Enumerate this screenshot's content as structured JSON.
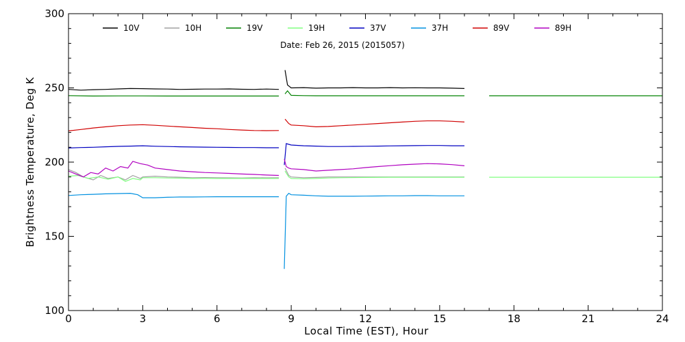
{
  "chart_data": {
    "type": "line",
    "title": "",
    "subtitle": "Date: Feb 26, 2015 (2015057)",
    "xlabel": "Local Time (EST), Hour",
    "ylabel": "Brightness Temperature, Deg K",
    "xlim": [
      0,
      24
    ],
    "ylim": [
      100,
      300
    ],
    "xticks": [
      0,
      3,
      6,
      9,
      12,
      15,
      18,
      21,
      24
    ],
    "yticks": [
      100,
      150,
      200,
      250,
      300
    ],
    "grid": false,
    "legend_position": "top",
    "series": [
      {
        "name": "10V",
        "color": "#000000",
        "points": [
          [
            0,
            249
          ],
          [
            0.5,
            248.5
          ],
          [
            1,
            248.8
          ],
          [
            1.5,
            249
          ],
          [
            2,
            249.3
          ],
          [
            2.5,
            249.6
          ],
          [
            3,
            249.5
          ],
          [
            3.5,
            249.3
          ],
          [
            4,
            249.2
          ],
          [
            4.5,
            249
          ],
          [
            5,
            249.1
          ],
          [
            5.5,
            249.2
          ],
          [
            6,
            249.2
          ],
          [
            6.5,
            249.3
          ],
          [
            7,
            249.1
          ],
          [
            7.5,
            249
          ],
          [
            8,
            249.2
          ],
          [
            8.5,
            249
          ],
          [
            null,
            null
          ],
          [
            8.75,
            262
          ],
          [
            8.85,
            252
          ],
          [
            9,
            250
          ],
          [
            9.5,
            250.2
          ],
          [
            10,
            249.8
          ],
          [
            10.5,
            250
          ],
          [
            11,
            250
          ],
          [
            11.5,
            250.2
          ],
          [
            12,
            250
          ],
          [
            12.5,
            250
          ],
          [
            13,
            250.2
          ],
          [
            13.5,
            250
          ],
          [
            14,
            250.1
          ],
          [
            14.5,
            250
          ],
          [
            15,
            250
          ],
          [
            15.5,
            249.8
          ],
          [
            16,
            249.6
          ]
        ]
      },
      {
        "name": "10H",
        "color": "#a0a0a0",
        "points": [
          [
            0,
            195
          ],
          [
            0.3,
            193
          ],
          [
            0.6,
            190
          ],
          [
            1,
            188
          ],
          [
            1.3,
            191
          ],
          [
            1.6,
            189
          ],
          [
            2,
            190
          ],
          [
            2.3,
            188
          ],
          [
            2.6,
            191
          ],
          [
            2.9,
            189
          ],
          [
            3,
            190
          ],
          [
            3.5,
            190.5
          ],
          [
            4,
            190
          ],
          [
            4.5,
            189.8
          ],
          [
            5,
            189.5
          ],
          [
            5.5,
            189.6
          ],
          [
            6,
            189.5
          ],
          [
            6.5,
            189.4
          ],
          [
            7,
            189.3
          ],
          [
            7.5,
            189.5
          ],
          [
            8,
            189.4
          ],
          [
            8.5,
            189.5
          ],
          [
            null,
            null
          ],
          [
            8.75,
            196
          ],
          [
            8.9,
            191
          ],
          [
            9,
            190
          ],
          [
            9.5,
            189.5
          ],
          [
            10,
            189.7
          ],
          [
            10.5,
            190
          ],
          [
            11,
            190
          ],
          [
            11.5,
            190
          ],
          [
            12,
            190
          ],
          [
            13,
            190
          ],
          [
            14,
            190
          ],
          [
            15,
            190
          ],
          [
            16,
            190
          ]
        ]
      },
      {
        "name": "19V",
        "color": "#008000",
        "points": [
          [
            0,
            244.8
          ],
          [
            1,
            244.5
          ],
          [
            2,
            244.6
          ],
          [
            3,
            244.6
          ],
          [
            4,
            244.5
          ],
          [
            5,
            244.5
          ],
          [
            6,
            244.5
          ],
          [
            7,
            244.5
          ],
          [
            8,
            244.5
          ],
          [
            8.5,
            244.5
          ],
          [
            null,
            null
          ],
          [
            8.75,
            246
          ],
          [
            8.85,
            248
          ],
          [
            9,
            245
          ],
          [
            9.5,
            244.8
          ],
          [
            10,
            244.7
          ],
          [
            11,
            244.7
          ],
          [
            12,
            244.7
          ],
          [
            13,
            244.7
          ],
          [
            14,
            244.7
          ],
          [
            15,
            244.7
          ],
          [
            16,
            244.7
          ],
          [
            null,
            null
          ],
          [
            17,
            244.7
          ],
          [
            18,
            244.7
          ],
          [
            19,
            244.7
          ],
          [
            20,
            244.7
          ],
          [
            21,
            244.7
          ],
          [
            22,
            244.7
          ],
          [
            23,
            244.7
          ],
          [
            24,
            244.7
          ]
        ]
      },
      {
        "name": "19H",
        "color": "#80ff80",
        "points": [
          [
            0,
            190.5
          ],
          [
            0.4,
            191
          ],
          [
            0.8,
            189
          ],
          [
            1.2,
            190
          ],
          [
            1.6,
            188.5
          ],
          [
            2,
            190
          ],
          [
            2.3,
            187
          ],
          [
            2.6,
            189
          ],
          [
            2.9,
            188
          ],
          [
            3,
            189.5
          ],
          [
            3.5,
            189.5
          ],
          [
            4,
            189.3
          ],
          [
            4.5,
            189.2
          ],
          [
            5,
            189
          ],
          [
            5.5,
            189.1
          ],
          [
            6,
            189
          ],
          [
            6.5,
            189
          ],
          [
            7,
            189
          ],
          [
            7.5,
            189
          ],
          [
            8,
            189
          ],
          [
            8.5,
            189
          ],
          [
            null,
            null
          ],
          [
            8.75,
            194
          ],
          [
            8.9,
            190
          ],
          [
            9,
            189
          ],
          [
            9.5,
            188.8
          ],
          [
            10,
            189
          ],
          [
            10.5,
            189.3
          ],
          [
            11,
            189.5
          ],
          [
            12,
            189.7
          ],
          [
            13,
            189.8
          ],
          [
            14,
            189.8
          ],
          [
            15,
            189.8
          ],
          [
            16,
            189.8
          ],
          [
            null,
            null
          ],
          [
            17,
            189.8
          ],
          [
            18,
            189.8
          ],
          [
            19,
            189.8
          ],
          [
            20,
            189.8
          ],
          [
            21,
            189.8
          ],
          [
            22,
            189.8
          ],
          [
            23,
            189.8
          ],
          [
            24,
            189.8
          ]
        ]
      },
      {
        "name": "37V",
        "color": "#0000c0",
        "points": [
          [
            0,
            209.5
          ],
          [
            0.5,
            209.8
          ],
          [
            1,
            210
          ],
          [
            1.5,
            210.3
          ],
          [
            2,
            210.6
          ],
          [
            2.5,
            210.8
          ],
          [
            3,
            211
          ],
          [
            3.5,
            210.7
          ],
          [
            4,
            210.5
          ],
          [
            4.5,
            210.3
          ],
          [
            5,
            210.2
          ],
          [
            5.5,
            210.1
          ],
          [
            6,
            210
          ],
          [
            6.5,
            209.9
          ],
          [
            7,
            209.8
          ],
          [
            7.5,
            209.8
          ],
          [
            8,
            209.7
          ],
          [
            8.5,
            209.7
          ],
          [
            null,
            null
          ],
          [
            8.72,
            198
          ],
          [
            8.8,
            212.5
          ],
          [
            8.9,
            212
          ],
          [
            9,
            211.5
          ],
          [
            9.5,
            211
          ],
          [
            10,
            210.8
          ],
          [
            10.5,
            210.5
          ],
          [
            11,
            210.5
          ],
          [
            11.5,
            210.6
          ],
          [
            12,
            210.7
          ],
          [
            12.5,
            210.8
          ],
          [
            13,
            210.9
          ],
          [
            13.5,
            211
          ],
          [
            14,
            211.1
          ],
          [
            14.5,
            211.2
          ],
          [
            15,
            211.2
          ],
          [
            15.5,
            211
          ],
          [
            16,
            211
          ]
        ]
      },
      {
        "name": "37H",
        "color": "#0090e0",
        "points": [
          [
            0,
            177.5
          ],
          [
            0.5,
            178
          ],
          [
            1,
            178.3
          ],
          [
            1.5,
            178.6
          ],
          [
            2,
            178.8
          ],
          [
            2.5,
            179
          ],
          [
            2.8,
            178
          ],
          [
            3,
            176
          ],
          [
            3.5,
            176
          ],
          [
            4,
            176.3
          ],
          [
            4.5,
            176.5
          ],
          [
            5,
            176.5
          ],
          [
            5.5,
            176.6
          ],
          [
            6,
            176.7
          ],
          [
            6.5,
            176.7
          ],
          [
            7,
            176.7
          ],
          [
            7.5,
            176.7
          ],
          [
            8,
            176.7
          ],
          [
            8.5,
            176.7
          ],
          [
            null,
            null
          ],
          [
            8.72,
            128
          ],
          [
            8.8,
            177
          ],
          [
            8.9,
            179
          ],
          [
            9,
            178
          ],
          [
            9.5,
            177.7
          ],
          [
            10,
            177.3
          ],
          [
            10.5,
            177
          ],
          [
            11,
            177
          ],
          [
            11.5,
            177
          ],
          [
            12,
            177.1
          ],
          [
            12.5,
            177.2
          ],
          [
            13,
            177.3
          ],
          [
            13.5,
            177.3
          ],
          [
            14,
            177.4
          ],
          [
            14.5,
            177.4
          ],
          [
            15,
            177.3
          ],
          [
            15.5,
            177.3
          ],
          [
            16,
            177.3
          ]
        ]
      },
      {
        "name": "89V",
        "color": "#d00000",
        "points": [
          [
            0,
            221
          ],
          [
            0.5,
            222
          ],
          [
            1,
            223
          ],
          [
            1.5,
            223.8
          ],
          [
            2,
            224.5
          ],
          [
            2.5,
            225
          ],
          [
            3,
            225.2
          ],
          [
            3.5,
            224.8
          ],
          [
            4,
            224.3
          ],
          [
            4.5,
            223.8
          ],
          [
            5,
            223.3
          ],
          [
            5.5,
            222.8
          ],
          [
            6,
            222.5
          ],
          [
            6.5,
            222
          ],
          [
            7,
            221.6
          ],
          [
            7.5,
            221.3
          ],
          [
            8,
            221.2
          ],
          [
            8.5,
            221.3
          ],
          [
            null,
            null
          ],
          [
            8.75,
            229
          ],
          [
            8.9,
            226
          ],
          [
            9,
            225
          ],
          [
            9.5,
            224.5
          ],
          [
            10,
            223.8
          ],
          [
            10.5,
            224
          ],
          [
            11,
            224.5
          ],
          [
            11.5,
            225
          ],
          [
            12,
            225.5
          ],
          [
            12.5,
            226
          ],
          [
            13,
            226.5
          ],
          [
            13.5,
            227
          ],
          [
            14,
            227.5
          ],
          [
            14.5,
            227.8
          ],
          [
            15,
            227.8
          ],
          [
            15.5,
            227.5
          ],
          [
            16,
            227
          ]
        ]
      },
      {
        "name": "89H",
        "color": "#b000c0",
        "points": [
          [
            0,
            194
          ],
          [
            0.3,
            192
          ],
          [
            0.6,
            190
          ],
          [
            0.9,
            193
          ],
          [
            1.2,
            192
          ],
          [
            1.5,
            196
          ],
          [
            1.8,
            194
          ],
          [
            2.1,
            197
          ],
          [
            2.4,
            196
          ],
          [
            2.6,
            200.5
          ],
          [
            2.9,
            199
          ],
          [
            3.2,
            198
          ],
          [
            3.5,
            196
          ],
          [
            4,
            195
          ],
          [
            4.5,
            194
          ],
          [
            5,
            193.5
          ],
          [
            5.5,
            193
          ],
          [
            6,
            192.7
          ],
          [
            6.5,
            192.4
          ],
          [
            7,
            192
          ],
          [
            7.5,
            191.7
          ],
          [
            8,
            191.3
          ],
          [
            8.5,
            191
          ],
          [
            null,
            null
          ],
          [
            8.72,
            202
          ],
          [
            8.8,
            197
          ],
          [
            8.9,
            196
          ],
          [
            9,
            195.5
          ],
          [
            9.5,
            195
          ],
          [
            10,
            194
          ],
          [
            10.5,
            194.5
          ],
          [
            11,
            195
          ],
          [
            11.5,
            195.5
          ],
          [
            12,
            196.3
          ],
          [
            12.5,
            197
          ],
          [
            13,
            197.6
          ],
          [
            13.5,
            198.2
          ],
          [
            14,
            198.6
          ],
          [
            14.5,
            199
          ],
          [
            15,
            198.8
          ],
          [
            15.5,
            198.3
          ],
          [
            16,
            197.5
          ]
        ]
      }
    ]
  }
}
